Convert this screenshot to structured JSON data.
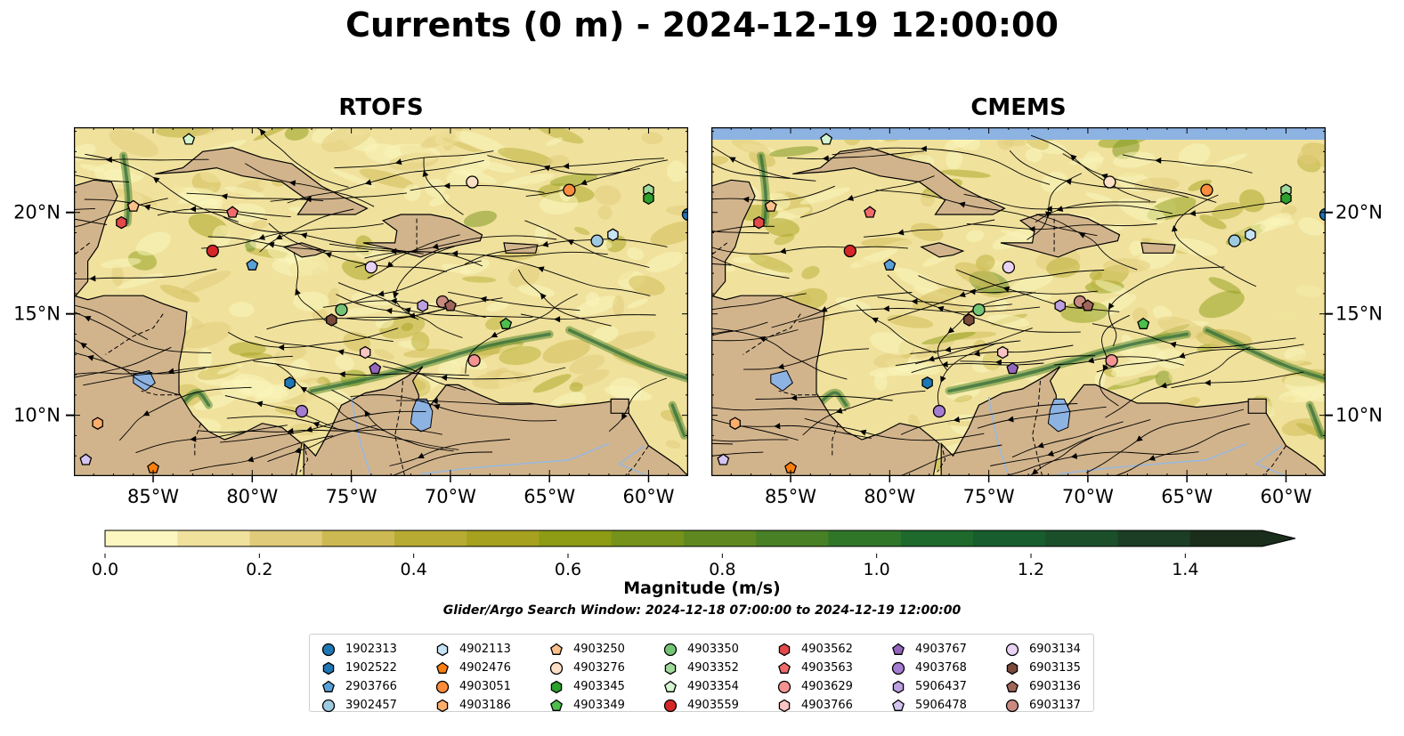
{
  "title": "Currents (0 m) - 2024-12-19 12:00:00",
  "panels": [
    {
      "title": "RTOFS",
      "top_band_color": "#fdf7c4"
    },
    {
      "title": "CMEMS",
      "top_band_color": "#8db3e2"
    }
  ],
  "map": {
    "lon_range": [
      -89.0,
      -58.0
    ],
    "lat_range": [
      7.0,
      24.2
    ],
    "lon_ticks": [
      "85°W",
      "80°W",
      "75°W",
      "70°W",
      "65°W",
      "60°W"
    ],
    "lat_ticks": [
      "20°N",
      "15°N",
      "10°N"
    ],
    "land_color": "#d2b48c",
    "lake_color": "#8db3e2"
  },
  "colorbar": {
    "label": "Magnitude (m/s)",
    "ticks": [
      "0.0",
      "0.2",
      "0.4",
      "0.6",
      "0.8",
      "1.0",
      "1.2",
      "1.4"
    ],
    "range": [
      0.0,
      1.5
    ],
    "extend": "max",
    "colors": [
      "#fcf7c0",
      "#f0e19c",
      "#e0cb7a",
      "#cdb952",
      "#b8ab33",
      "#a6a11e",
      "#8d9b15",
      "#76921a",
      "#5f8920",
      "#478025",
      "#2f7629",
      "#1d6a2c",
      "#175d2e",
      "#1a4f2a",
      "#1b3e24",
      "#1a2e1b"
    ]
  },
  "search_window": "Glider/Argo Search Window: 2024-12-18 07:00:00 to 2024-12-19 12:00:00",
  "legend": [
    {
      "id": "1902313",
      "color": "#1f77b4",
      "marker": "circle"
    },
    {
      "id": "1902522",
      "color": "#1f77b4",
      "marker": "hexagon"
    },
    {
      "id": "2903766",
      "color": "#5aa0d8",
      "marker": "pentagon"
    },
    {
      "id": "3902457",
      "color": "#9ecae1",
      "marker": "circle"
    },
    {
      "id": "4902113",
      "color": "#c6e4f5",
      "marker": "hexagon"
    },
    {
      "id": "4902476",
      "color": "#ff7f0e",
      "marker": "pentagon"
    },
    {
      "id": "4903051",
      "color": "#fd8d3c",
      "marker": "circle"
    },
    {
      "id": "4903186",
      "color": "#fdae6b",
      "marker": "hexagon"
    },
    {
      "id": "4903250",
      "color": "#fdc08a",
      "marker": "pentagon"
    },
    {
      "id": "4903276",
      "color": "#fde0c5",
      "marker": "circle"
    },
    {
      "id": "4903345",
      "color": "#2ca02c",
      "marker": "hexagon"
    },
    {
      "id": "4903349",
      "color": "#4cbf4c",
      "marker": "pentagon"
    },
    {
      "id": "4903350",
      "color": "#74c476",
      "marker": "circle"
    },
    {
      "id": "4903352",
      "color": "#a1d99b",
      "marker": "hexagon"
    },
    {
      "id": "4903354",
      "color": "#d4f5cf",
      "marker": "pentagon"
    },
    {
      "id": "4903559",
      "color": "#d62728",
      "marker": "circle"
    },
    {
      "id": "4903562",
      "color": "#e34a4a",
      "marker": "hexagon"
    },
    {
      "id": "4903563",
      "color": "#f06b6b",
      "marker": "pentagon"
    },
    {
      "id": "4903629",
      "color": "#f59393",
      "marker": "circle"
    },
    {
      "id": "4903766",
      "color": "#fbc3c3",
      "marker": "hexagon"
    },
    {
      "id": "4903767",
      "color": "#9467bd",
      "marker": "pentagon"
    },
    {
      "id": "4903768",
      "color": "#a47cd0",
      "marker": "circle"
    },
    {
      "id": "5906437",
      "color": "#bca0e0",
      "marker": "hexagon"
    },
    {
      "id": "5906478",
      "color": "#d4c4f0",
      "marker": "pentagon"
    },
    {
      "id": "6903134",
      "color": "#e9d3f5",
      "marker": "circle"
    },
    {
      "id": "6903135",
      "color": "#7a4a3a",
      "marker": "hexagon"
    },
    {
      "id": "6903136",
      "color": "#a0655a",
      "marker": "pentagon"
    },
    {
      "id": "6903137",
      "color": "#c98b80",
      "marker": "circle"
    }
  ],
  "markers": [
    {
      "id": "1902313",
      "lon": -58.0,
      "lat": 19.9
    },
    {
      "id": "4902113",
      "lon": -61.8,
      "lat": 18.9
    },
    {
      "id": "3902457",
      "lon": -62.6,
      "lat": 18.6
    },
    {
      "id": "4903051",
      "lon": -64.0,
      "lat": 21.1
    },
    {
      "id": "4903352",
      "lon": -60.0,
      "lat": 21.1
    },
    {
      "id": "4903345",
      "lon": -60.0,
      "lat": 20.7
    },
    {
      "id": "4903276",
      "lon": -68.9,
      "lat": 21.5
    },
    {
      "id": "6903134",
      "lon": -74.0,
      "lat": 17.3
    },
    {
      "id": "4903768",
      "lon": -77.5,
      "lat": 10.2
    },
    {
      "id": "4903350",
      "lon": -75.5,
      "lat": 15.2
    },
    {
      "id": "6903135",
      "lon": -76.0,
      "lat": 14.7
    },
    {
      "id": "6903137",
      "lon": -70.4,
      "lat": 15.6
    },
    {
      "id": "6903136",
      "lon": -70.0,
      "lat": 15.4
    },
    {
      "id": "5906437",
      "lon": -71.4,
      "lat": 15.4
    },
    {
      "id": "4903349",
      "lon": -67.2,
      "lat": 14.5
    },
    {
      "id": "4903629",
      "lon": -68.8,
      "lat": 12.7
    },
    {
      "id": "4903766",
      "lon": -74.3,
      "lat": 13.1
    },
    {
      "id": "4903767",
      "lon": -73.8,
      "lat": 12.3
    },
    {
      "id": "1902522",
      "lon": -78.1,
      "lat": 11.6
    },
    {
      "id": "2903766",
      "lon": -80.0,
      "lat": 17.4
    },
    {
      "id": "4903559",
      "lon": -82.0,
      "lat": 18.1
    },
    {
      "id": "4903563",
      "lon": -81.0,
      "lat": 20.0
    },
    {
      "id": "4903562",
      "lon": -86.6,
      "lat": 19.5
    },
    {
      "id": "4903250",
      "lon": -86.0,
      "lat": 20.3
    },
    {
      "id": "4903354",
      "lon": -83.2,
      "lat": 23.6
    },
    {
      "id": "4903186",
      "lon": -87.8,
      "lat": 9.6
    },
    {
      "id": "5906478",
      "lon": -88.4,
      "lat": 7.8
    },
    {
      "id": "4902476",
      "lon": -85.0,
      "lat": 7.4
    }
  ]
}
